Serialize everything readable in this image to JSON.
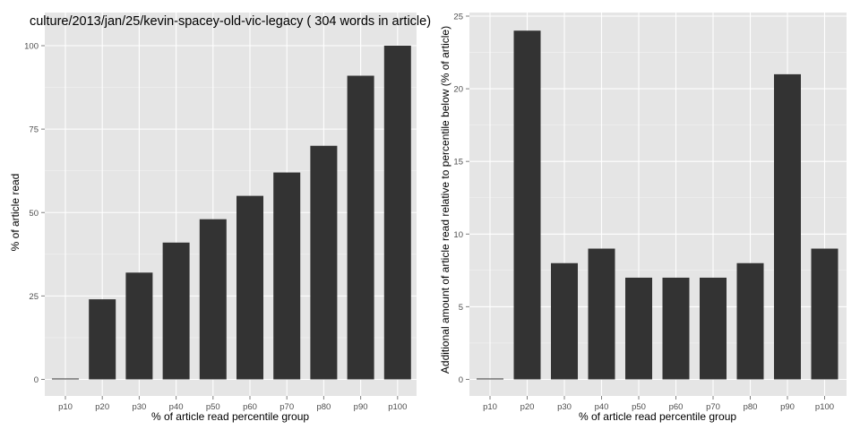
{
  "chart_data": [
    {
      "type": "bar",
      "title": "culture/2013/jan/25/kevin-spacey-old-vic-legacy ( 304 words in article)",
      "xlabel": "% of article read percentile group",
      "ylabel": "% of article read",
      "categories": [
        "p10",
        "p20",
        "p30",
        "p40",
        "p50",
        "p60",
        "p70",
        "p80",
        "p90",
        "p100"
      ],
      "values": [
        0,
        24,
        32,
        41,
        48,
        55,
        62,
        70,
        91,
        100
      ],
      "ylim": [
        0,
        104
      ],
      "yticks": [
        0,
        25,
        50,
        75,
        100
      ],
      "grid": true,
      "colors": {
        "bar": "#333333",
        "panel": "#e5e5e5",
        "grid_major": "#ffffff",
        "grid_minor": "#f2f2f2"
      }
    },
    {
      "type": "bar",
      "title": "",
      "xlabel": "% of article read percentile group",
      "ylabel": "Additional amount of article read relative to percentile below (% of article)",
      "categories": [
        "p10",
        "p20",
        "p30",
        "p40",
        "p50",
        "p60",
        "p70",
        "p80",
        "p90",
        "p100"
      ],
      "values": [
        0,
        24,
        8,
        9,
        7,
        7,
        7,
        8,
        21,
        9
      ],
      "ylim": [
        0,
        25
      ],
      "yticks": [
        0,
        5,
        10,
        15,
        20,
        25
      ],
      "grid": true,
      "colors": {
        "bar": "#333333",
        "panel": "#e5e5e5",
        "grid_major": "#ffffff",
        "grid_minor": "#f2f2f2"
      }
    }
  ]
}
